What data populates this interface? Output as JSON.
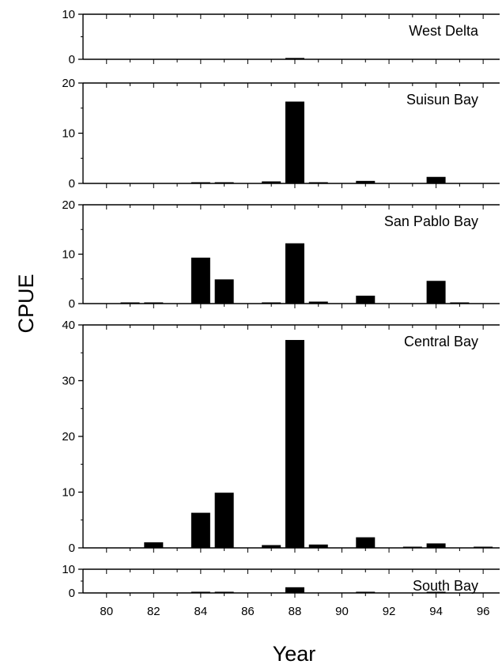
{
  "chart_data": {
    "type": "bar",
    "ylabel": "CPUE",
    "xlabel": "Year",
    "x_ticks": [
      "80",
      "82",
      "84",
      "86",
      "88",
      "90",
      "92",
      "94",
      "96"
    ],
    "x_range": [
      79,
      96.7
    ],
    "panels": [
      {
        "title": "West Delta",
        "ylim": [
          0,
          10
        ],
        "y_ticks": [
          "0",
          "10"
        ],
        "bars": [
          {
            "year": 88,
            "value": 0.3
          }
        ]
      },
      {
        "title": "Suisun Bay",
        "ylim": [
          0,
          20
        ],
        "y_ticks": [
          "0",
          "10",
          "20"
        ],
        "bars": [
          {
            "year": 84,
            "value": 0.1
          },
          {
            "year": 85,
            "value": 0.2
          },
          {
            "year": 87,
            "value": 0.4
          },
          {
            "year": 88,
            "value": 16.3
          },
          {
            "year": 89,
            "value": 0.1
          },
          {
            "year": 91,
            "value": 0.5
          },
          {
            "year": 94,
            "value": 1.3
          }
        ]
      },
      {
        "title": "San Pablo Bay",
        "ylim": [
          0,
          20
        ],
        "y_ticks": [
          "0",
          "10",
          "20"
        ],
        "bars": [
          {
            "year": 81,
            "value": 0.2
          },
          {
            "year": 82,
            "value": 0.1
          },
          {
            "year": 84,
            "value": 9.3
          },
          {
            "year": 85,
            "value": 4.9
          },
          {
            "year": 87,
            "value": 0.1
          },
          {
            "year": 88,
            "value": 12.2
          },
          {
            "year": 89,
            "value": 0.4
          },
          {
            "year": 91,
            "value": 1.6
          },
          {
            "year": 94,
            "value": 4.6
          },
          {
            "year": 95,
            "value": 0.1
          }
        ]
      },
      {
        "title": "Central Bay",
        "ylim": [
          0,
          40
        ],
        "y_ticks": [
          "0",
          "10",
          "20",
          "30",
          "40"
        ],
        "bars": [
          {
            "year": 82,
            "value": 1.0
          },
          {
            "year": 84,
            "value": 6.3
          },
          {
            "year": 85,
            "value": 9.9
          },
          {
            "year": 87,
            "value": 0.5
          },
          {
            "year": 88,
            "value": 37.3
          },
          {
            "year": 89,
            "value": 0.6
          },
          {
            "year": 91,
            "value": 1.9
          },
          {
            "year": 93,
            "value": 0.1
          },
          {
            "year": 94,
            "value": 0.8
          },
          {
            "year": 96,
            "value": 0.1
          }
        ]
      },
      {
        "title": "South Bay",
        "ylim": [
          0,
          10
        ],
        "y_ticks": [
          "0",
          "10"
        ],
        "bars": [
          {
            "year": 84,
            "value": 0.1
          },
          {
            "year": 85,
            "value": 0.3
          },
          {
            "year": 88,
            "value": 2.4
          },
          {
            "year": 91,
            "value": 0.1
          },
          {
            "year": 94,
            "value": 0.2
          }
        ]
      }
    ]
  }
}
